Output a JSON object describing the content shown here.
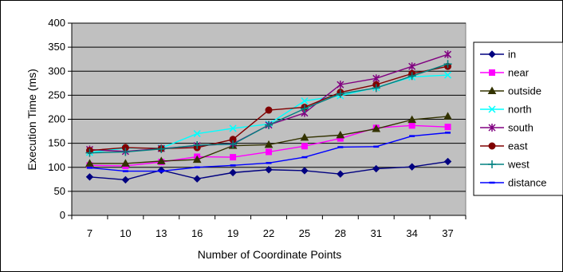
{
  "chart_data": {
    "type": "line",
    "title": "",
    "xlabel": "Number of Coordinate Points",
    "ylabel": "Execution Time (ms)",
    "x": [
      "7",
      "10",
      "13",
      "16",
      "19",
      "22",
      "25",
      "28",
      "31",
      "34",
      "37"
    ],
    "ylim": [
      0,
      400
    ],
    "yticks": [
      "0",
      "50",
      "100",
      "150",
      "200",
      "250",
      "300",
      "350",
      "400"
    ],
    "grid": true,
    "legend": "right",
    "plot_background": "#c0c0c0",
    "series": [
      {
        "name": "in",
        "color": "#000080",
        "marker": "diamond",
        "values": [
          80,
          74,
          94,
          76,
          89,
          95,
          93,
          86,
          97,
          101,
          112
        ]
      },
      {
        "name": "near",
        "color": "#ff00ff",
        "marker": "square",
        "values": [
          104,
          103,
          111,
          122,
          121,
          132,
          144,
          160,
          182,
          187,
          184
        ]
      },
      {
        "name": "outside",
        "color": "#333300",
        "marker": "triangle",
        "values": [
          108,
          108,
          113,
          116,
          145,
          147,
          162,
          167,
          180,
          199,
          206
        ]
      },
      {
        "name": "north",
        "color": "#00ffff",
        "marker": "x",
        "values": [
          131,
          140,
          140,
          170,
          181,
          190,
          238,
          249,
          266,
          288,
          292
        ]
      },
      {
        "name": "south",
        "color": "#800080",
        "marker": "star",
        "values": [
          137,
          133,
          139,
          145,
          149,
          188,
          213,
          272,
          285,
          310,
          335
        ]
      },
      {
        "name": "east",
        "color": "#800000",
        "marker": "circle",
        "values": [
          135,
          141,
          139,
          141,
          158,
          219,
          225,
          256,
          272,
          295,
          310
        ]
      },
      {
        "name": "west",
        "color": "#008080",
        "marker": "plus",
        "values": [
          130,
          132,
          138,
          146,
          148,
          188,
          222,
          253,
          265,
          290,
          315
        ]
      },
      {
        "name": "distance",
        "color": "#0000ff",
        "marker": "dash",
        "values": [
          99,
          92,
          92,
          100,
          104,
          109,
          121,
          142,
          143,
          165,
          172
        ]
      }
    ]
  }
}
